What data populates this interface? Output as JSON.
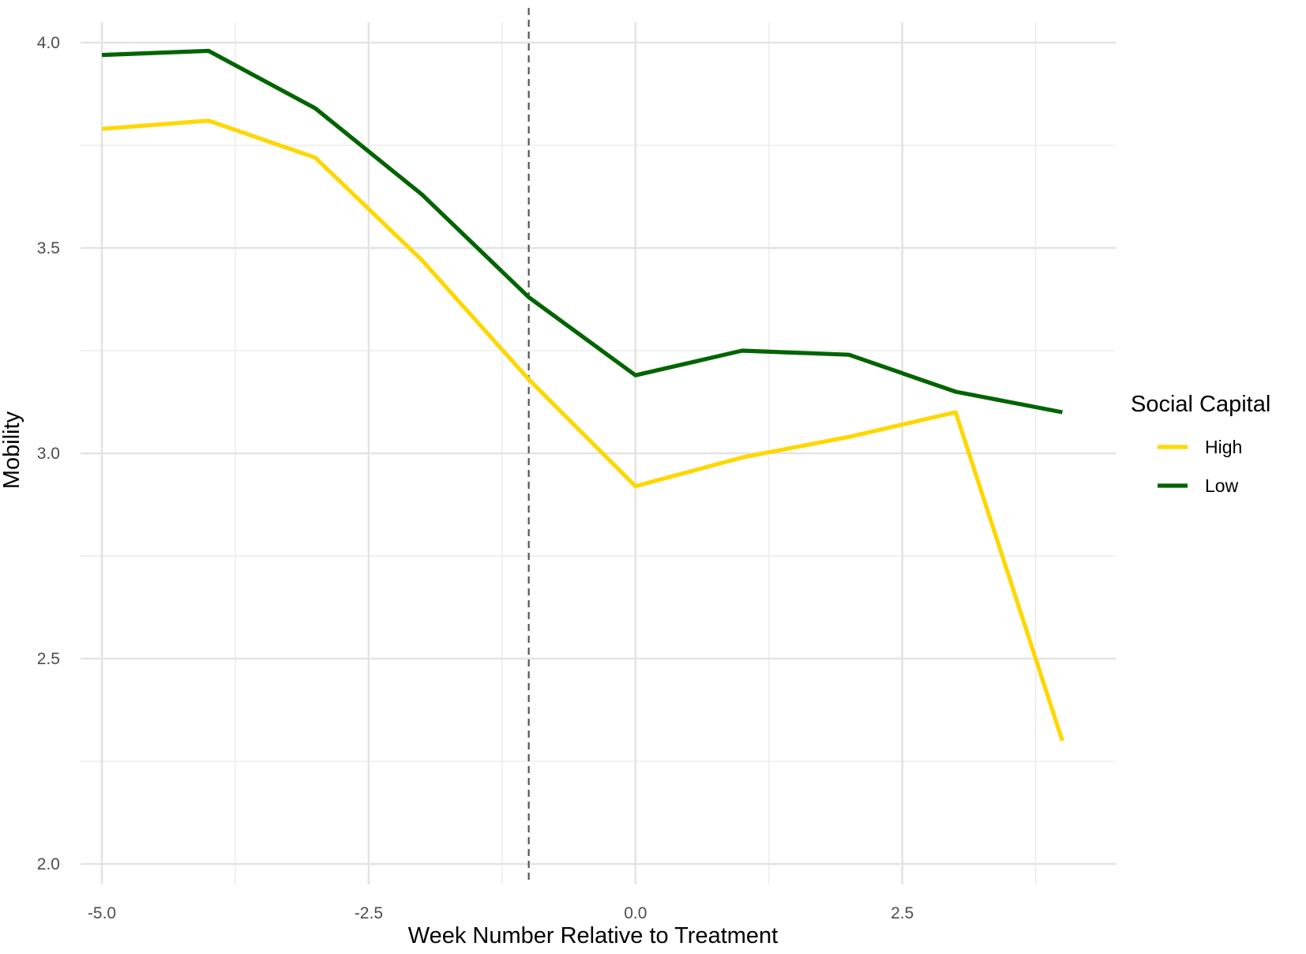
{
  "chart_data": {
    "type": "line",
    "title": "",
    "xlabel": "Week Number Relative to Treatment",
    "ylabel": "Mobility",
    "xlim": [
      -5.2,
      4.5
    ],
    "ylim": [
      1.95,
      4.05
    ],
    "x_ticks": [
      -5.0,
      -2.5,
      0.0,
      2.5
    ],
    "x_tick_labels": [
      "-5.0",
      "-2.5",
      "0.0",
      "2.5"
    ],
    "x_minor_ticks": [
      -3.75,
      -1.25,
      1.25,
      3.75
    ],
    "y_ticks": [
      2.0,
      2.5,
      3.0,
      3.5,
      4.0
    ],
    "y_tick_labels": [
      "2.0",
      "2.5",
      "3.0",
      "3.5",
      "4.0"
    ],
    "y_minor_ticks": [
      2.25,
      2.75,
      3.25,
      3.75
    ],
    "grid": true,
    "reference_line": {
      "x": -1,
      "style": "dashed",
      "color": "#555555"
    },
    "x": [
      -5,
      -4,
      -3,
      -2,
      -1,
      0,
      1,
      2,
      3,
      4
    ],
    "series": [
      {
        "name": "High",
        "color": "#FFD700",
        "values": [
          3.79,
          3.81,
          3.72,
          3.47,
          3.18,
          2.92,
          2.99,
          3.04,
          3.1,
          2.3
        ]
      },
      {
        "name": "Low",
        "color": "#006400",
        "values": [
          3.97,
          3.98,
          3.84,
          3.63,
          3.38,
          3.19,
          3.25,
          3.24,
          3.15,
          3.1
        ]
      }
    ],
    "legend": {
      "title": "Social Capital",
      "placement": "right"
    }
  }
}
